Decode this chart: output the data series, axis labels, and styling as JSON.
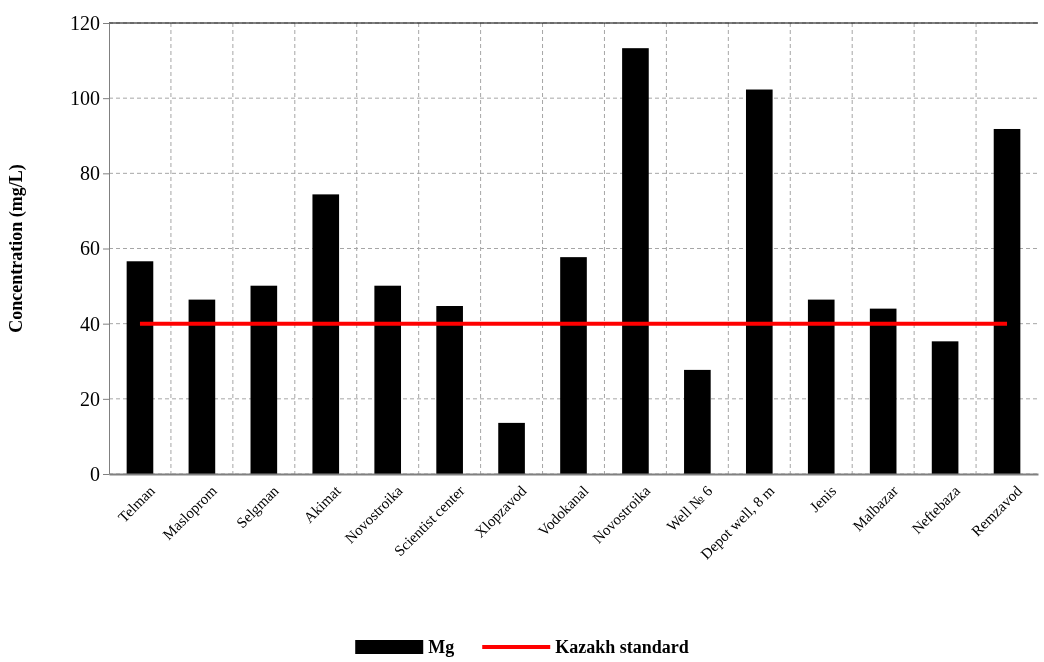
{
  "chart_data": {
    "type": "bar",
    "ylabel": "Concentration (mg/L)",
    "categories": [
      "Telman",
      "Masloprom",
      "Selgman",
      "Akimat",
      "Novostroika",
      "Scientist  center",
      "Xlopzavod",
      "Vodokanal",
      "Novostroika",
      "Well № 6",
      "Depot well, 8 m",
      "Jenis",
      "Malbazar",
      "Neftebaza",
      "Remzavod"
    ],
    "series": [
      {
        "name": "Mg",
        "color": "#000000",
        "values": [
          56.6,
          46.4,
          50.1,
          74.4,
          50.1,
          44.7,
          13.6,
          57.7,
          113.3,
          27.7,
          102.3,
          46.4,
          44.0,
          35.3,
          91.8
        ]
      }
    ],
    "ylim": [
      0,
      120
    ],
    "yticks": [
      0,
      20,
      40,
      60,
      80,
      100,
      120
    ],
    "ref_lines": [
      {
        "axis": "y",
        "value": 40,
        "label": "Kazakh standard",
        "color": "#ff0000"
      }
    ],
    "grid": true,
    "legend": "bottom"
  }
}
